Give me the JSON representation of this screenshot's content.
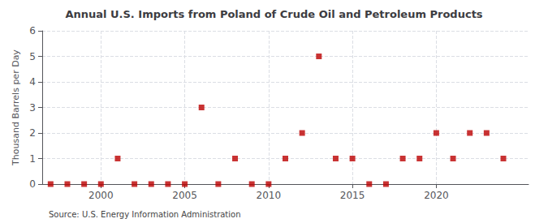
{
  "chart_data": {
    "type": "scatter",
    "title": "Annual U.S. Imports from Poland of Crude Oil and Petroleum Products",
    "ylabel": "Thousand Barrels per Day",
    "annotations": [
      "Source: U.S. Energy Information Administration"
    ],
    "x": [
      1997,
      1998,
      1999,
      2000,
      2001,
      2002,
      2003,
      2004,
      2005,
      2006,
      2007,
      2008,
      2009,
      2010,
      2011,
      2012,
      2013,
      2014,
      2015,
      2016,
      2017,
      2018,
      2019,
      2020,
      2021,
      2022,
      2023,
      2024
    ],
    "values": [
      0,
      0,
      0,
      0,
      1,
      0,
      0,
      0,
      0,
      3,
      0,
      1,
      0,
      0,
      1,
      2,
      5,
      1,
      1,
      0,
      0,
      1,
      1,
      2,
      1,
      2,
      2,
      1
    ],
    "color": "#bb0000",
    "marker": "square",
    "xlim": [
      1996.5,
      2025.5
    ],
    "xticks": [
      2000,
      2005,
      2010,
      2015,
      2020
    ],
    "ylim": [
      0,
      6
    ],
    "yticks": [
      0,
      1,
      2,
      3,
      4,
      5,
      6
    ],
    "grid": true
  }
}
